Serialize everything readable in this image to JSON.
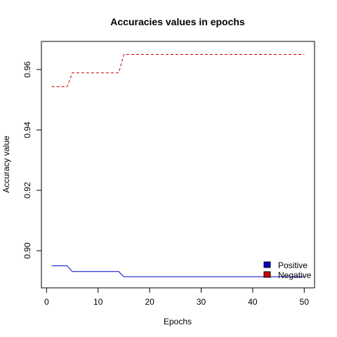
{
  "chart_data": {
    "type": "line",
    "title": "Accuracies values in epochs",
    "xlabel": "Epochs",
    "ylabel": "Accuracy value",
    "xlim": [
      -1,
      52
    ],
    "ylim": [
      0.8877,
      0.9693
    ],
    "xticks": [
      0,
      10,
      20,
      30,
      40,
      50
    ],
    "yticks": [
      0.9,
      0.92,
      0.94,
      0.96
    ],
    "xtick_labels": [
      "0",
      "10",
      "20",
      "30",
      "40",
      "50"
    ],
    "ytick_labels": [
      "0.90",
      "0.92",
      "0.94",
      "0.96"
    ],
    "legend_position": "bottom-right",
    "grid": false,
    "series": [
      {
        "name": "Positive",
        "color": "#0000cc",
        "line_style": "solid",
        "x": [
          1,
          4,
          5,
          14,
          15,
          50
        ],
        "y": [
          0.895,
          0.895,
          0.8931,
          0.8931,
          0.8914,
          0.8914
        ]
      },
      {
        "name": "Negative",
        "color": "#cc0000",
        "line_style": "dashed",
        "x": [
          1,
          4,
          5,
          14,
          15,
          50
        ],
        "y": [
          0.9543,
          0.9543,
          0.9589,
          0.9589,
          0.965,
          0.965
        ]
      }
    ]
  }
}
